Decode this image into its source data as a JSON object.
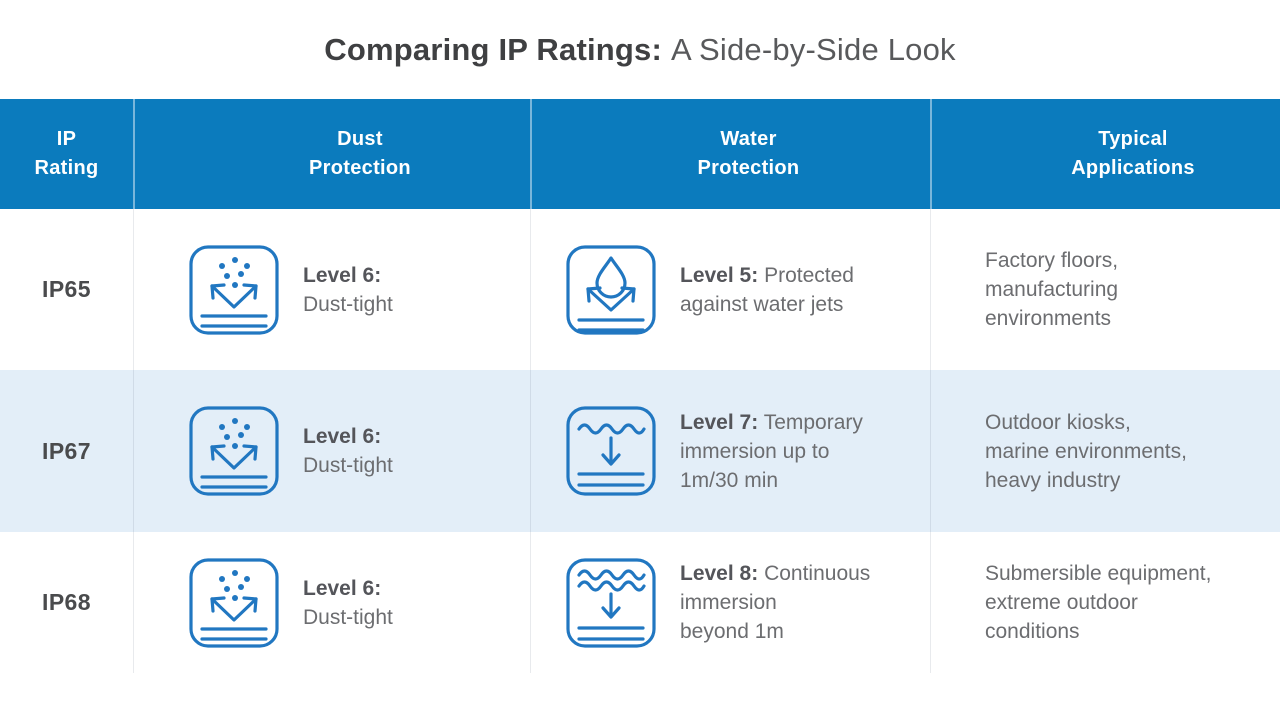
{
  "title": {
    "bold": "Comparing IP Ratings:",
    "regular": "A Side-by-Side Look"
  },
  "colors": {
    "header_bg": "#0b7bbd",
    "alt_row_bg": "#e3eef8",
    "icon_stroke": "#2177c1",
    "title_bold": "#3f4042",
    "body_text": "#6c6d70",
    "ip_text": "#4a4b4d"
  },
  "table": {
    "headers": [
      {
        "label": "IP\nRating"
      },
      {
        "label": "Dust\nProtection"
      },
      {
        "label": "Water\nProtection"
      },
      {
        "label": "Typical\nApplications"
      }
    ],
    "rows": [
      {
        "ip": "IP65",
        "dust": {
          "icon": "dust-bounce-icon",
          "label": "Level 6:",
          "text": "Dust-tight"
        },
        "water": {
          "icon": "water-jet-icon",
          "label": "Level 5:",
          "lines": [
            "Protected",
            "against water jets"
          ]
        },
        "applications_lines": [
          "Factory floors,",
          "manufacturing",
          "environments"
        ]
      },
      {
        "ip": "IP67",
        "dust": {
          "icon": "dust-bounce-icon",
          "label": "Level 6:",
          "text": "Dust-tight"
        },
        "water": {
          "icon": "water-immersion-icon",
          "label": "Level 7:",
          "lines": [
            "Temporary",
            "immersion up to",
            "1m/30 min"
          ]
        },
        "applications_lines": [
          "Outdoor kiosks,",
          "marine environments,",
          "heavy industry"
        ]
      },
      {
        "ip": "IP68",
        "dust": {
          "icon": "dust-bounce-icon",
          "label": "Level 6:",
          "text": "Dust-tight"
        },
        "water": {
          "icon": "deep-immersion-icon",
          "label": "Level 8:",
          "lines": [
            "Continuous",
            "immersion",
            "beyond 1m"
          ]
        },
        "applications_lines": [
          "Submersible equipment,",
          "extreme outdoor",
          "conditions"
        ]
      }
    ]
  }
}
